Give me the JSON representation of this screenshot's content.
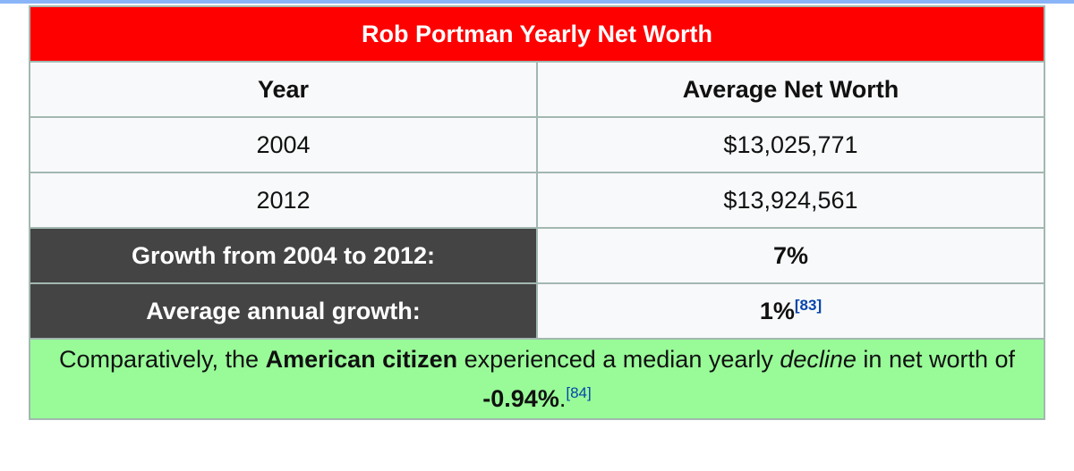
{
  "table": {
    "title": "Rob Portman Yearly Net Worth",
    "headers": [
      "Year",
      "Average Net Worth"
    ],
    "rows": [
      {
        "year": "2004",
        "value": "$13,025,771"
      },
      {
        "year": "2012",
        "value": "$13,924,561"
      }
    ],
    "growth": {
      "label": "Growth from 2004 to 2012:",
      "value": "7%"
    },
    "annual": {
      "label": "Average annual growth:",
      "value": "1%",
      "ref": "[83]"
    },
    "note": {
      "prefix": "Comparatively, the ",
      "bold": "American citizen",
      "middle": " experienced a median yearly ",
      "italic": "decline",
      "suffix": " in net worth of",
      "value": "-0.94%",
      "period": ".",
      "ref": "[84]"
    }
  },
  "colors": {
    "title_bg": "#ff0000",
    "summary_bg": "#444444",
    "note_bg": "#98fb98",
    "link": "#0645ad"
  }
}
